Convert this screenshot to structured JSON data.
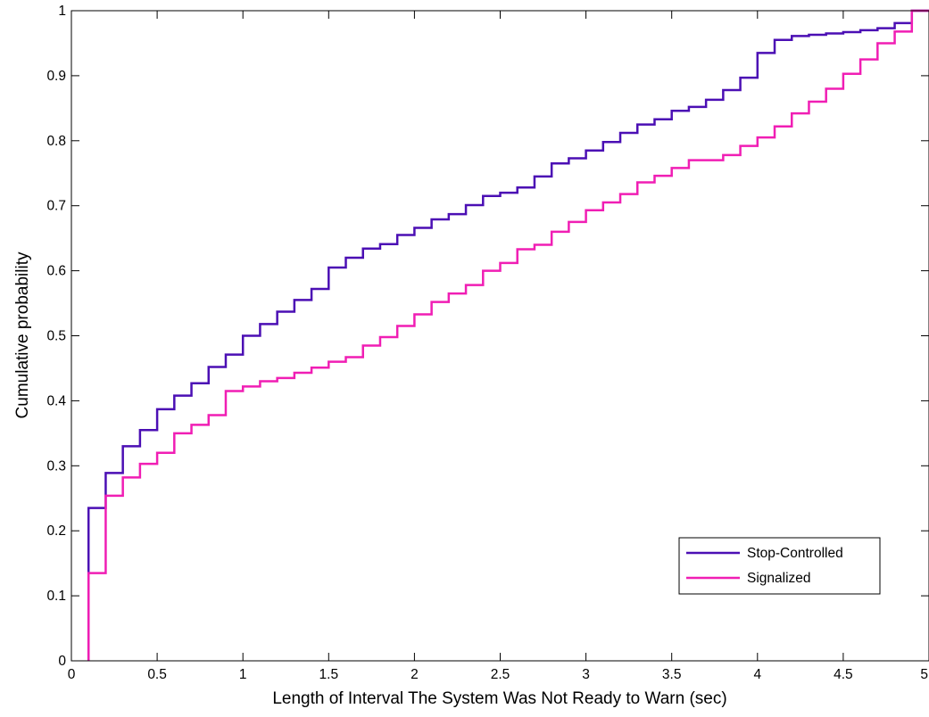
{
  "chart_data": {
    "type": "line",
    "title": "",
    "xlabel": "Length of Interval The System Was Not Ready to Warn (sec)",
    "ylabel": "Cumulative probability",
    "xlim": [
      0,
      5
    ],
    "ylim": [
      0,
      1
    ],
    "xticks": [
      "0",
      "0.5",
      "1",
      "1.5",
      "2",
      "2.5",
      "3",
      "3.5",
      "4",
      "4.5",
      "5"
    ],
    "yticks": [
      "0",
      "0.1",
      "0.2",
      "0.3",
      "0.4",
      "0.5",
      "0.6",
      "0.7",
      "0.8",
      "0.9",
      "1"
    ],
    "grid": false,
    "legend_position": "bottom-right",
    "series": [
      {
        "name": "Stop-Controlled",
        "color": "#4b0fb4",
        "step": true,
        "x": [
          0.1,
          0.1,
          0.2,
          0.3,
          0.4,
          0.5,
          0.6,
          0.7,
          0.8,
          0.9,
          1.0,
          1.1,
          1.2,
          1.3,
          1.4,
          1.5,
          1.6,
          1.7,
          1.8,
          1.9,
          2.0,
          2.1,
          2.2,
          2.3,
          2.4,
          2.5,
          2.6,
          2.7,
          2.8,
          2.9,
          3.0,
          3.1,
          3.2,
          3.3,
          3.4,
          3.5,
          3.6,
          3.7,
          3.8,
          3.9,
          4.0,
          4.1,
          4.2,
          4.3,
          4.4,
          4.5,
          4.6,
          4.7,
          4.8,
          4.9
        ],
        "y": [
          0,
          0.235,
          0.289,
          0.33,
          0.355,
          0.387,
          0.408,
          0.427,
          0.452,
          0.471,
          0.5,
          0.518,
          0.537,
          0.555,
          0.572,
          0.605,
          0.62,
          0.634,
          0.641,
          0.655,
          0.666,
          0.679,
          0.687,
          0.701,
          0.715,
          0.72,
          0.728,
          0.745,
          0.765,
          0.773,
          0.785,
          0.798,
          0.812,
          0.825,
          0.833,
          0.846,
          0.852,
          0.863,
          0.878,
          0.897,
          0.935,
          0.955,
          0.961,
          0.963,
          0.965,
          0.967,
          0.97,
          0.973,
          0.981,
          1.0
        ]
      },
      {
        "name": "Signalized",
        "color": "#f01eb4",
        "step": true,
        "x": [
          0.1,
          0.1,
          0.2,
          0.3,
          0.4,
          0.5,
          0.6,
          0.7,
          0.8,
          0.9,
          1.0,
          1.1,
          1.2,
          1.3,
          1.4,
          1.5,
          1.6,
          1.7,
          1.8,
          1.9,
          2.0,
          2.1,
          2.2,
          2.3,
          2.4,
          2.5,
          2.6,
          2.7,
          2.8,
          2.9,
          3.0,
          3.1,
          3.2,
          3.3,
          3.4,
          3.5,
          3.6,
          3.7,
          3.8,
          3.9,
          4.0,
          4.1,
          4.2,
          4.3,
          4.4,
          4.5,
          4.6,
          4.7,
          4.8,
          4.9
        ],
        "y": [
          0,
          0.135,
          0.254,
          0.282,
          0.303,
          0.32,
          0.35,
          0.363,
          0.378,
          0.415,
          0.422,
          0.43,
          0.435,
          0.443,
          0.451,
          0.46,
          0.467,
          0.485,
          0.498,
          0.515,
          0.533,
          0.552,
          0.565,
          0.578,
          0.6,
          0.612,
          0.633,
          0.64,
          0.66,
          0.675,
          0.693,
          0.705,
          0.718,
          0.736,
          0.746,
          0.758,
          0.77,
          0.77,
          0.778,
          0.792,
          0.805,
          0.822,
          0.842,
          0.86,
          0.88,
          0.903,
          0.925,
          0.95,
          0.968,
          1.0
        ]
      }
    ]
  }
}
